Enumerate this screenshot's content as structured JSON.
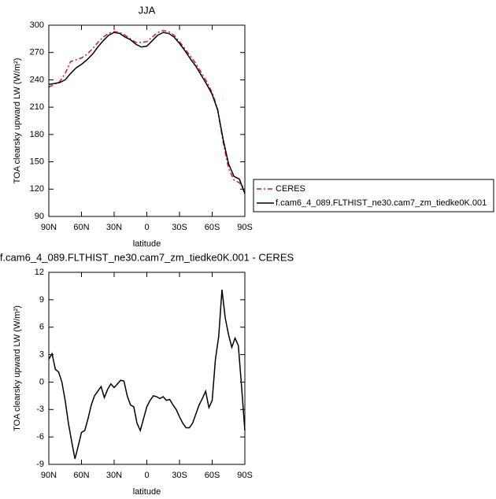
{
  "chart_data": [
    {
      "type": "line",
      "title": "JJA",
      "xlabel": "latitude",
      "ylabel": "TOA clearsky upward LW (W/m²)",
      "x": [
        90,
        85,
        80,
        75,
        70,
        65,
        60,
        55,
        50,
        45,
        40,
        35,
        30,
        25,
        20,
        15,
        10,
        5,
        0,
        -5,
        -10,
        -15,
        -20,
        -25,
        -30,
        -35,
        -40,
        -45,
        -50,
        -55,
        -60,
        -65,
        -70,
        -75,
        -80,
        -85,
        -90
      ],
      "xlim": [
        90,
        -90
      ],
      "xticks": [
        {
          "value": 90,
          "label": "90N"
        },
        {
          "value": 60,
          "label": "60N"
        },
        {
          "value": 30,
          "label": "30N"
        },
        0,
        {
          "value": -30,
          "label": "30S"
        },
        {
          "value": -60,
          "label": "60S"
        },
        {
          "value": -90,
          "label": "90S"
        }
      ],
      "ylim": [
        90,
        300
      ],
      "yticks": [
        90,
        120,
        150,
        180,
        210,
        240,
        270,
        300
      ],
      "legend": "right",
      "series": [
        {
          "name": "CERES",
          "color": "#e0141e",
          "dash": true,
          "values": [
            232,
            235,
            238,
            247,
            260,
            262,
            264,
            268,
            274,
            281,
            287,
            291,
            293,
            292,
            289,
            285,
            281,
            281,
            282,
            287,
            292,
            294,
            293,
            289,
            282,
            274,
            266,
            258,
            248,
            238,
            226,
            208,
            172,
            143,
            130,
            127,
            120
          ]
        },
        {
          "name": "f.cam6_4_089.FLTHIST_ne30.cam7_zm_tiedke0K.001",
          "color": "#000000",
          "dash": false,
          "values": [
            235,
            236,
            237,
            240,
            247,
            253,
            257,
            262,
            268,
            276,
            283,
            289,
            292,
            291,
            287,
            284,
            279,
            276,
            277,
            283,
            289,
            292,
            291,
            287,
            280,
            272,
            263,
            255,
            245,
            235,
            224,
            207,
            175,
            148,
            134,
            131,
            115
          ]
        }
      ]
    },
    {
      "type": "line",
      "title": "f.cam6_4_089.FLTHIST_ne30.cam7_zm_tiedke0K.001 - CERES",
      "xlabel": "latitude",
      "ylabel": "TOA clearsky upward LW (W/m²)",
      "x": [
        90,
        87,
        84,
        81,
        78,
        75,
        72,
        69,
        66,
        63,
        60,
        57,
        54,
        51,
        48,
        45,
        42,
        39,
        36,
        33,
        30,
        27,
        24,
        21,
        18,
        15,
        12,
        9,
        6,
        3,
        0,
        -3,
        -6,
        -9,
        -12,
        -15,
        -18,
        -21,
        -24,
        -27,
        -30,
        -33,
        -36,
        -39,
        -42,
        -45,
        -48,
        -51,
        -54,
        -57,
        -60,
        -63,
        -66,
        -69,
        -72,
        -75,
        -78,
        -81,
        -84,
        -87,
        -90
      ],
      "xlim": [
        90,
        -90
      ],
      "xticks": [
        {
          "value": 90,
          "label": "90N"
        },
        {
          "value": 60,
          "label": "60N"
        },
        {
          "value": 30,
          "label": "30N"
        },
        0,
        {
          "value": -30,
          "label": "30S"
        },
        {
          "value": -60,
          "label": "60S"
        },
        {
          "value": -90,
          "label": "90S"
        }
      ],
      "ylim": [
        -9,
        12
      ],
      "yticks": [
        -9,
        -6,
        -3,
        0,
        3,
        6,
        9,
        12
      ],
      "series": [
        {
          "color": "#000000",
          "dash": false,
          "values": [
            2.5,
            3.1,
            1.4,
            1.1,
            0,
            -2,
            -4.5,
            -6.5,
            -8.4,
            -7,
            -5.5,
            -5.3,
            -4,
            -2.5,
            -1.5,
            -1,
            -0.5,
            -1.7,
            -0.8,
            -0.2,
            -0.6,
            -0.2,
            0.2,
            0.1,
            -1.5,
            -2.5,
            -2.7,
            -4.5,
            -5.3,
            -4,
            -2.7,
            -2,
            -1.5,
            -1.6,
            -1.8,
            -1.6,
            -2,
            -1.9,
            -2.5,
            -3,
            -3.8,
            -4.5,
            -5,
            -5,
            -4.5,
            -3.5,
            -2.5,
            -1.8,
            -1,
            -2.8,
            -2,
            2.5,
            5,
            10.1,
            7,
            5.2,
            3.8,
            4.8,
            4,
            -0.5,
            -5.3
          ]
        }
      ]
    }
  ]
}
